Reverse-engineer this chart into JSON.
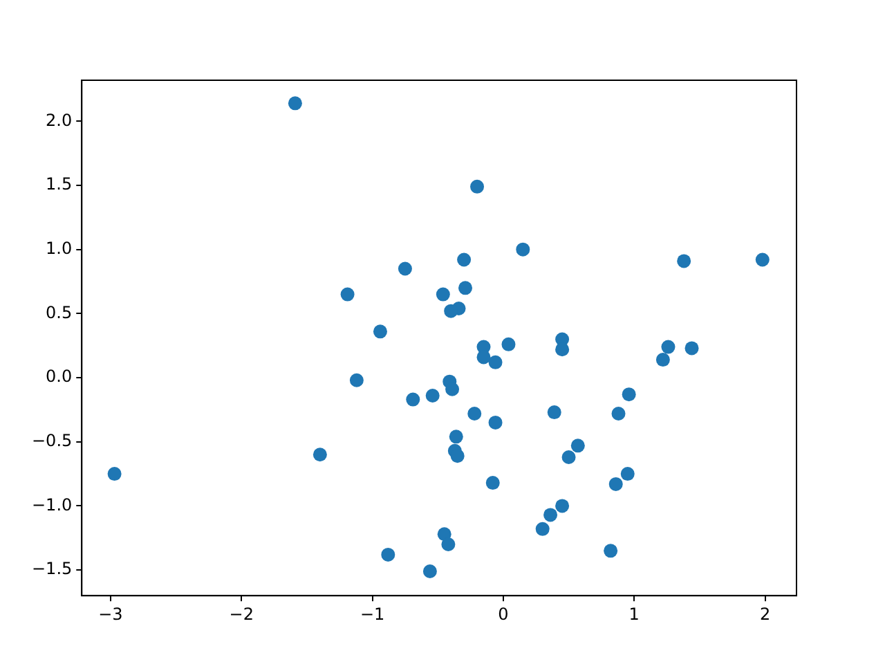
{
  "chart_data": {
    "type": "scatter",
    "marker": "circle",
    "grid": false,
    "legend": false,
    "xlim": [
      -3.22,
      2.24
    ],
    "ylim": [
      -1.7,
      2.32
    ],
    "xticks": [
      {
        "value": -3,
        "label": "−3"
      },
      {
        "value": -2,
        "label": "−2"
      },
      {
        "value": -1,
        "label": "−1"
      },
      0,
      1,
      2
    ],
    "yticks": [
      {
        "value": -1.5,
        "label": "−1.5"
      },
      {
        "value": -1,
        "label": "−1.0"
      },
      {
        "value": -0.5,
        "label": "−0.5"
      },
      {
        "value": 0,
        "label": "0.0"
      },
      {
        "value": 0.5,
        "label": "0.5"
      },
      {
        "value": 1,
        "label": "1.0"
      },
      {
        "value": 1.5,
        "label": "1.5"
      },
      {
        "value": 2,
        "label": "2.0"
      }
    ],
    "series": [
      {
        "color": "#1f77b4",
        "x": [
          -1.59,
          -0.2,
          0.15,
          -0.75,
          -0.3,
          -1.19,
          -0.46,
          -0.29,
          -0.34,
          -0.4,
          1.38,
          1.98,
          -0.94,
          -0.15,
          0.04,
          0.45,
          0.45,
          -0.15,
          -0.06,
          1.26,
          1.22,
          1.44,
          -1.12,
          -0.41,
          -0.39,
          -0.69,
          -0.54,
          -0.22,
          -0.06,
          0.39,
          0.88,
          0.96,
          -0.36,
          -0.37,
          -0.35,
          -1.4,
          -2.97,
          0.5,
          0.57,
          0.95,
          -0.08,
          0.86,
          0.36,
          0.45,
          0.3,
          -0.45,
          -0.42,
          -0.88,
          0.82,
          -0.56
        ],
        "values": [
          2.14,
          1.49,
          1.0,
          0.85,
          0.92,
          0.65,
          0.65,
          0.7,
          0.54,
          0.52,
          0.91,
          0.92,
          0.36,
          0.24,
          0.26,
          0.3,
          0.22,
          0.16,
          0.12,
          0.24,
          0.14,
          0.23,
          -0.02,
          -0.03,
          -0.09,
          -0.17,
          -0.14,
          -0.28,
          -0.35,
          -0.27,
          -0.28,
          -0.13,
          -0.46,
          -0.57,
          -0.61,
          -0.6,
          -0.75,
          -0.62,
          -0.53,
          -0.75,
          -0.82,
          -0.83,
          -1.07,
          -1.0,
          -1.18,
          -1.22,
          -1.3,
          -1.38,
          -1.35,
          -1.51
        ]
      }
    ]
  }
}
